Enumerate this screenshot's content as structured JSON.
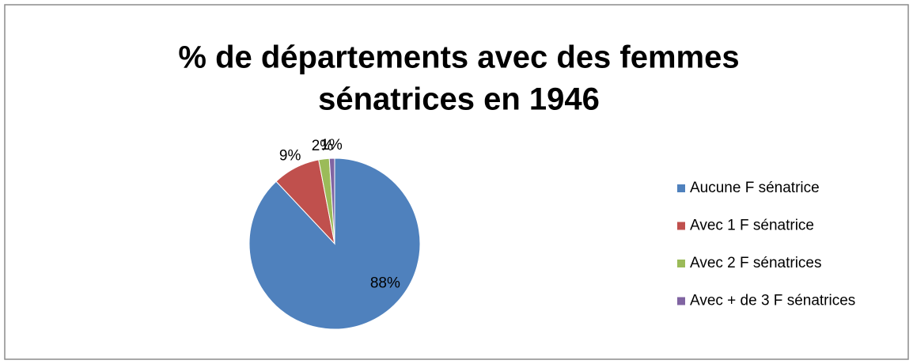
{
  "chart_data": {
    "type": "pie",
    "title": [
      "% de départements avec des femmes",
      "sénatrices en 1946"
    ],
    "categories": [
      "Aucune F  sénatrice",
      "Avec 1 F sénatrice",
      "Avec 2 F sénatrices",
      "Avec + de 3  F sénatrices"
    ],
    "values": [
      88,
      9,
      2,
      1
    ],
    "value_labels": [
      "88%",
      "9%",
      "2%",
      "1%"
    ],
    "colors": [
      "#4f81bd",
      "#c0504d",
      "#9bbb59",
      "#8064a2"
    ],
    "legend": "right"
  }
}
